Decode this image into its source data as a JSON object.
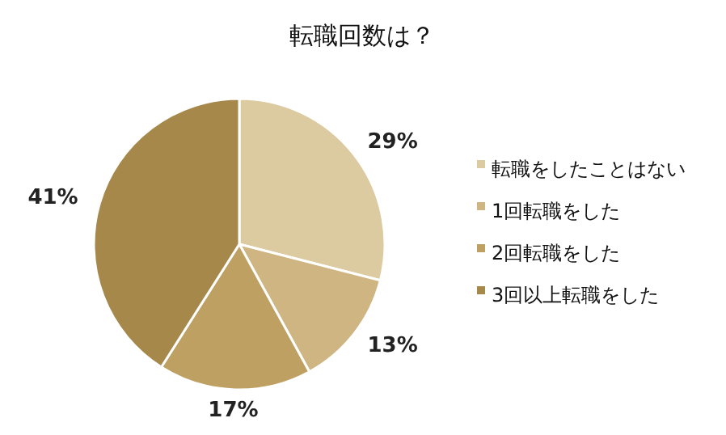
{
  "chart_data": {
    "type": "pie",
    "title": "転職回数は？",
    "categories": [
      "転職をしたことはない",
      "1回転職をした",
      "2回転職をした",
      "3回以上転職をした"
    ],
    "values": [
      29,
      13,
      17,
      41
    ],
    "colors": [
      "#dccaa0",
      "#ceb582",
      "#bea062",
      "#a6884a"
    ],
    "value_labels": [
      "29%",
      "13%",
      "17%",
      "41%"
    ],
    "legend": "right"
  }
}
